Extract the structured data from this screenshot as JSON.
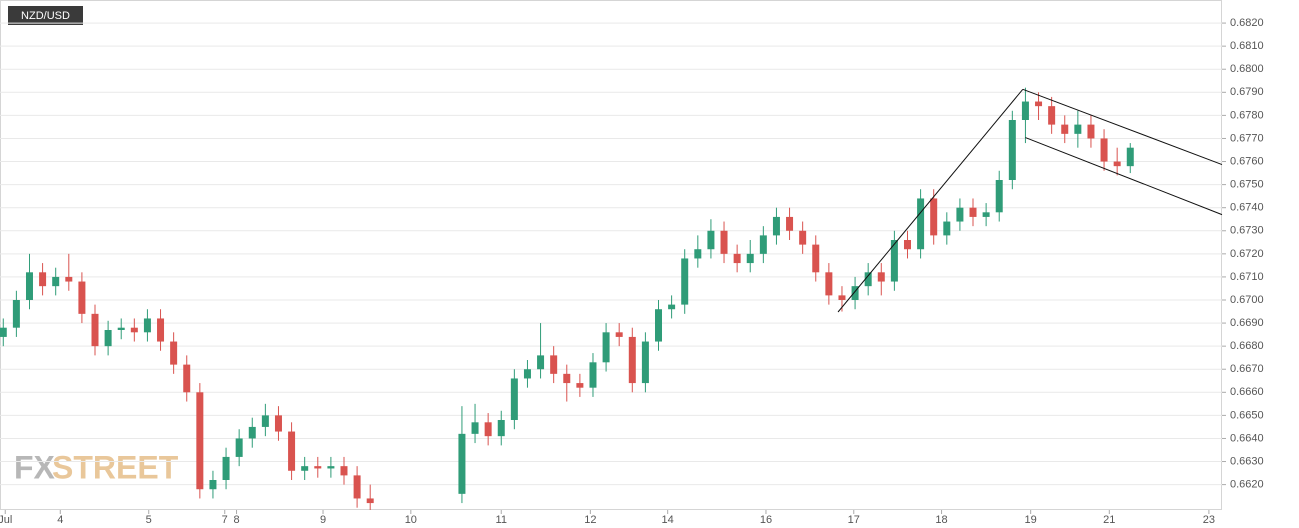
{
  "chart_data": {
    "type": "candlestick",
    "title": "NZD/USD",
    "watermark": [
      "FX",
      "STREET"
    ],
    "colors": {
      "up": "#2f9c78",
      "down": "#d9534f"
    },
    "grid": true,
    "xlim": [
      -0.25,
      93
    ],
    "ylim": [
      0.6609,
      0.683
    ],
    "xticks": [
      {
        "value": 0.15,
        "label": "Jul"
      },
      {
        "value": 4.35,
        "label": "4"
      },
      {
        "value": 11.1,
        "label": "5"
      },
      {
        "value": 16.9,
        "label": "7"
      },
      {
        "value": 17.8,
        "label": "8"
      },
      {
        "value": 24.4,
        "label": "9"
      },
      {
        "value": 31.1,
        "label": "10"
      },
      {
        "value": 38,
        "label": "11"
      },
      {
        "value": 44.8,
        "label": "12"
      },
      {
        "value": 50.7,
        "label": "14"
      },
      {
        "value": 58.2,
        "label": "16"
      },
      {
        "value": 64.9,
        "label": "17"
      },
      {
        "value": 71.6,
        "label": "18"
      },
      {
        "value": 78.4,
        "label": "19"
      },
      {
        "value": 84.4,
        "label": "21"
      },
      {
        "value": 92,
        "label": "23"
      }
    ],
    "yticks": [
      {
        "value": 0.662,
        "label": "0.6620"
      },
      {
        "value": 0.663,
        "label": "0.6630"
      },
      {
        "value": 0.664,
        "label": "0.6640"
      },
      {
        "value": 0.665,
        "label": "0.6650"
      },
      {
        "value": 0.666,
        "label": "0.6660"
      },
      {
        "value": 0.667,
        "label": "0.6670"
      },
      {
        "value": 0.668,
        "label": "0.6680"
      },
      {
        "value": 0.669,
        "label": "0.6690"
      },
      {
        "value": 0.67,
        "label": "0.6700"
      },
      {
        "value": 0.671,
        "label": "0.6710"
      },
      {
        "value": 0.672,
        "label": "0.6720"
      },
      {
        "value": 0.673,
        "label": "0.6730"
      },
      {
        "value": 0.674,
        "label": "0.6740"
      },
      {
        "value": 0.675,
        "label": "0.6750"
      },
      {
        "value": 0.676,
        "label": "0.6760"
      },
      {
        "value": 0.677,
        "label": "0.6770"
      },
      {
        "value": 0.678,
        "label": "0.6780"
      },
      {
        "value": 0.679,
        "label": "0.6790"
      },
      {
        "value": 0.68,
        "label": "0.6800"
      },
      {
        "value": 0.681,
        "label": "0.6810"
      },
      {
        "value": 0.682,
        "label": "0.6820"
      }
    ],
    "x": [
      0,
      1,
      2,
      3,
      4,
      5,
      6,
      7,
      8,
      9,
      10,
      11,
      12,
      13,
      14,
      15,
      16,
      17,
      18,
      19,
      20,
      21,
      22,
      23,
      24,
      25,
      26,
      27,
      28,
      35,
      36,
      37,
      38,
      39,
      40,
      41,
      42,
      43,
      44,
      45,
      46,
      47,
      48,
      49,
      50,
      51,
      52,
      53,
      54,
      55,
      56,
      57,
      58,
      59,
      60,
      61,
      62,
      63,
      64,
      65,
      66,
      67,
      68,
      69,
      70,
      71,
      72,
      73,
      74,
      75,
      76,
      77,
      78,
      79,
      80,
      81,
      82,
      83,
      84,
      85,
      86
    ],
    "open": [
      0.6684,
      0.6688,
      0.67,
      0.6712,
      0.6706,
      0.671,
      0.6708,
      0.6694,
      0.668,
      0.6687,
      0.6688,
      0.6686,
      0.6692,
      0.6682,
      0.6672,
      0.666,
      0.6618,
      0.6622,
      0.6632,
      0.664,
      0.6645,
      0.665,
      0.6643,
      0.6626,
      0.6628,
      0.6627,
      0.6628,
      0.6624,
      0.6614,
      0.6616,
      0.6642,
      0.6647,
      0.6641,
      0.6648,
      0.6666,
      0.667,
      0.6676,
      0.6668,
      0.6664,
      0.6662,
      0.6673,
      0.6686,
      0.6684,
      0.6664,
      0.6682,
      0.6696,
      0.6698,
      0.6718,
      0.6722,
      0.673,
      0.672,
      0.6716,
      0.672,
      0.6728,
      0.6736,
      0.673,
      0.6724,
      0.6712,
      0.6702,
      0.67,
      0.6706,
      0.6712,
      0.6708,
      0.6726,
      0.6722,
      0.6744,
      0.6728,
      0.6734,
      0.674,
      0.6736,
      0.6738,
      0.6752,
      0.6778,
      0.6786,
      0.6784,
      0.6776,
      0.6772,
      0.6776,
      0.677,
      0.676,
      0.6758
    ],
    "high": [
      0.6692,
      0.6704,
      0.672,
      0.6716,
      0.6714,
      0.672,
      0.6712,
      0.6698,
      0.6691,
      0.6692,
      0.6692,
      0.6696,
      0.6696,
      0.6686,
      0.6676,
      0.6664,
      0.6626,
      0.6636,
      0.6644,
      0.6649,
      0.6655,
      0.6654,
      0.6647,
      0.6632,
      0.6632,
      0.6632,
      0.6632,
      0.6628,
      0.662,
      0.6654,
      0.6655,
      0.6651,
      0.6652,
      0.667,
      0.6674,
      0.669,
      0.668,
      0.6672,
      0.6668,
      0.6677,
      0.669,
      0.669,
      0.6688,
      0.6686,
      0.67,
      0.6702,
      0.6722,
      0.6728,
      0.6735,
      0.6734,
      0.6724,
      0.6726,
      0.6732,
      0.674,
      0.674,
      0.6734,
      0.6728,
      0.6716,
      0.6706,
      0.671,
      0.6716,
      0.6716,
      0.673,
      0.673,
      0.6748,
      0.6748,
      0.6738,
      0.6744,
      0.6744,
      0.6742,
      0.6756,
      0.6782,
      0.6792,
      0.679,
      0.6788,
      0.678,
      0.6782,
      0.678,
      0.6774,
      0.6766,
      0.6768
    ],
    "low": [
      0.668,
      0.6684,
      0.6696,
      0.6702,
      0.6702,
      0.6704,
      0.669,
      0.6676,
      0.6676,
      0.6683,
      0.6682,
      0.6682,
      0.6678,
      0.6668,
      0.6656,
      0.6614,
      0.6614,
      0.6618,
      0.6628,
      0.6636,
      0.6641,
      0.6639,
      0.6622,
      0.6622,
      0.6623,
      0.6623,
      0.662,
      0.661,
      0.6609,
      0.6612,
      0.6638,
      0.6637,
      0.6637,
      0.6644,
      0.6662,
      0.6666,
      0.6664,
      0.6656,
      0.6658,
      0.6658,
      0.6669,
      0.668,
      0.666,
      0.666,
      0.6678,
      0.6692,
      0.6694,
      0.6714,
      0.6718,
      0.6716,
      0.6712,
      0.6712,
      0.6716,
      0.6724,
      0.6726,
      0.672,
      0.6708,
      0.6698,
      0.6695,
      0.6696,
      0.6702,
      0.6702,
      0.6704,
      0.6718,
      0.6718,
      0.6724,
      0.6724,
      0.673,
      0.6732,
      0.6732,
      0.6734,
      0.6748,
      0.6768,
      0.6778,
      0.6772,
      0.6768,
      0.6766,
      0.6766,
      0.6756,
      0.6754,
      0.6755
    ],
    "close": [
      0.6688,
      0.67,
      0.6712,
      0.6706,
      0.671,
      0.6708,
      0.6694,
      0.668,
      0.6687,
      0.6688,
      0.6686,
      0.6692,
      0.6682,
      0.6672,
      0.666,
      0.6618,
      0.6622,
      0.6632,
      0.664,
      0.6645,
      0.665,
      0.6643,
      0.6626,
      0.6628,
      0.6627,
      0.6628,
      0.6624,
      0.6614,
      0.6612,
      0.6642,
      0.6647,
      0.6641,
      0.6648,
      0.6666,
      0.667,
      0.6676,
      0.6668,
      0.6664,
      0.6662,
      0.6673,
      0.6686,
      0.6684,
      0.6664,
      0.6682,
      0.6696,
      0.6698,
      0.6718,
      0.6722,
      0.673,
      0.672,
      0.6716,
      0.672,
      0.6728,
      0.6736,
      0.673,
      0.6724,
      0.6712,
      0.6702,
      0.67,
      0.6706,
      0.6712,
      0.6708,
      0.6726,
      0.6722,
      0.6744,
      0.6728,
      0.6734,
      0.674,
      0.6736,
      0.6738,
      0.6752,
      0.6778,
      0.6786,
      0.6784,
      0.6776,
      0.6772,
      0.6776,
      0.677,
      0.676,
      0.6758,
      0.6766
    ],
    "lines": [
      {
        "x": [
          63.7,
          77.8
        ],
        "y": [
          0.66948,
          0.67913
        ]
      },
      {
        "x": [
          77.8,
          93
        ],
        "y": [
          0.67913,
          0.67587
        ]
      },
      {
        "x": [
          78,
          93
        ],
        "y": [
          0.67704,
          0.6737
        ]
      }
    ]
  }
}
